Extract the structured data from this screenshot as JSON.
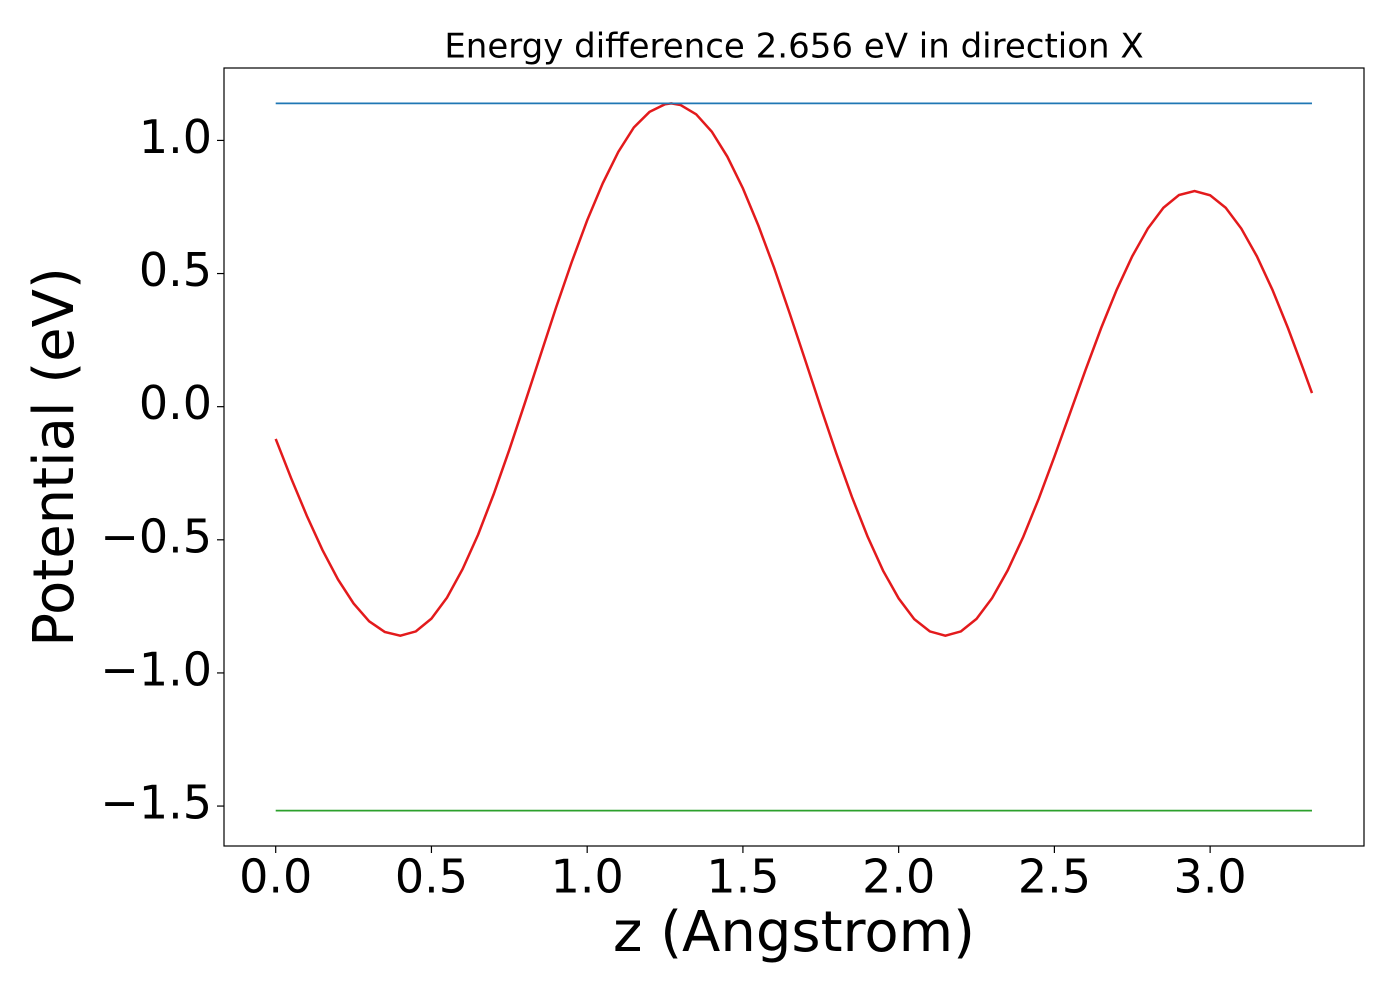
{
  "chart_data": {
    "type": "line",
    "title": "Energy difference 2.656 eV in direction X",
    "xlabel": "z (Angstrom)",
    "ylabel": "Potential (eV)",
    "series": [
      {
        "color": "#e31a1c",
        "x": [
          0,
          0.05,
          0.1,
          0.15,
          0.2,
          0.25,
          0.3,
          0.35,
          0.4,
          0.45,
          0.5,
          0.55,
          0.6,
          0.65,
          0.7,
          0.75,
          0.8,
          0.85,
          0.9,
          0.95,
          1.0,
          1.05,
          1.1,
          1.15,
          1.2,
          1.25,
          1.27,
          1.3,
          1.35,
          1.4,
          1.45,
          1.5,
          1.55,
          1.6,
          1.65,
          1.7,
          1.75,
          1.8,
          1.85,
          1.9,
          1.95,
          2.0,
          2.05,
          2.1,
          2.15,
          2.2,
          2.25,
          2.3,
          2.35,
          2.4,
          2.45,
          2.5,
          2.55,
          2.6,
          2.65,
          2.7,
          2.75,
          2.8,
          2.85,
          2.9,
          2.95,
          3.0,
          3.05,
          3.1,
          3.15,
          3.2,
          3.25,
          3.3,
          3.327
        ],
        "values": [
          -0.121,
          -0.27,
          -0.41,
          -0.538,
          -0.649,
          -0.739,
          -0.806,
          -0.846,
          -0.86,
          -0.844,
          -0.796,
          -0.717,
          -0.61,
          -0.48,
          -0.328,
          -0.162,
          0.014,
          0.193,
          0.372,
          0.542,
          0.7,
          0.839,
          0.957,
          1.049,
          1.107,
          1.136,
          1.139,
          1.133,
          1.098,
          1.033,
          0.939,
          0.82,
          0.679,
          0.522,
          0.351,
          0.175,
          -0.003,
          -0.176,
          -0.339,
          -0.487,
          -0.616,
          -0.72,
          -0.798,
          -0.844,
          -0.86,
          -0.844,
          -0.797,
          -0.719,
          -0.615,
          -0.489,
          -0.345,
          -0.188,
          -0.025,
          0.138,
          0.295,
          0.439,
          0.565,
          0.669,
          0.747,
          0.795,
          0.81,
          0.794,
          0.747,
          0.669,
          0.565,
          0.439,
          0.295,
          0.138,
          0.051
        ]
      },
      {
        "color": "#1f77b4",
        "x": [
          0,
          3.327
        ],
        "values": [
          1.139,
          1.139
        ]
      },
      {
        "color": "#2ca02c",
        "x": [
          0,
          3.327
        ],
        "values": [
          -1.517,
          -1.517
        ]
      }
    ],
    "xlim": [
      -0.166,
      3.494
    ],
    "ylim": [
      -1.65,
      1.272
    ],
    "xticks": [
      {
        "value": 0,
        "label": "0.0"
      },
      0.5,
      {
        "value": 1,
        "label": "1.0"
      },
      1.5,
      {
        "value": 2,
        "label": "2.0"
      },
      2.5,
      {
        "value": 3,
        "label": "3.0"
      }
    ],
    "yticks": [
      {
        "value": -1.5,
        "label": "−1.5"
      },
      {
        "value": -1,
        "label": "−1.0"
      },
      {
        "value": -0.5,
        "label": "−0.5"
      },
      {
        "value": 0,
        "label": "0.0"
      },
      0.5,
      {
        "value": 1,
        "label": "1.0"
      }
    ],
    "grid": false
  }
}
